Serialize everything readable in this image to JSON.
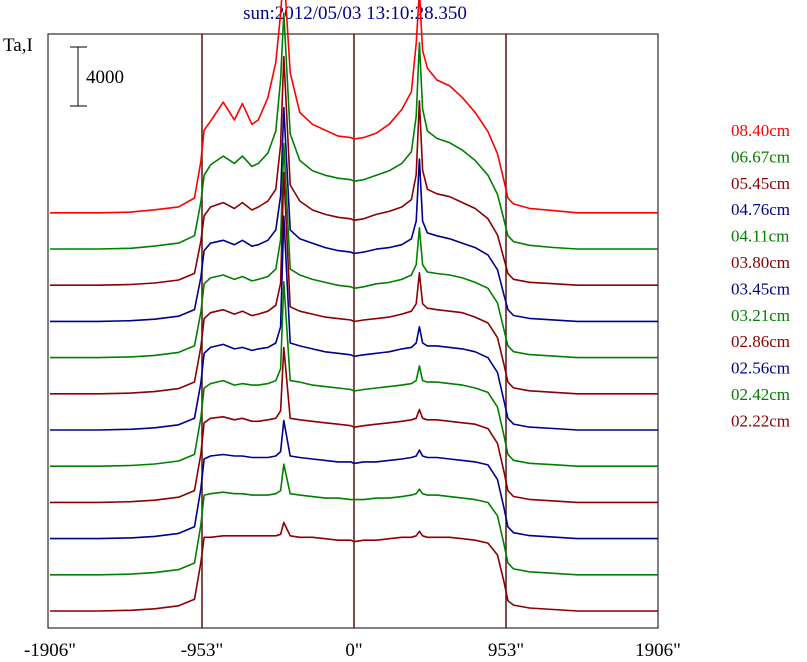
{
  "title": "sun:2012/05/03 13:10:28.350",
  "ylabel": "Ta,I",
  "scale_bar_label": "4000",
  "chart_data": {
    "type": "line",
    "title": "sun:2012/05/03 13:10:28.350",
    "ylabel": "Ta,I",
    "xlabel": "",
    "xlim": [
      -1906,
      1906
    ],
    "x_ticks": [
      -1906,
      -953,
      0,
      953,
      1906
    ],
    "x_tick_labels": [
      "-1906\"",
      "-953\"",
      "0\"",
      "953\"",
      "1906\""
    ],
    "vertical_lines_at": [
      -953,
      0,
      953
    ],
    "scale_bar_value": 4000,
    "x": [
      -1906,
      -1800,
      -1600,
      -1400,
      -1250,
      -1100,
      -1000,
      -960,
      -940,
      -900,
      -820,
      -750,
      -700,
      -640,
      -600,
      -540,
      -490,
      -460,
      -440,
      -400,
      -340,
      -260,
      -180,
      -100,
      -20,
      0,
      60,
      140,
      220,
      300,
      360,
      390,
      410,
      430,
      460,
      520,
      600,
      680,
      760,
      840,
      900,
      940,
      965,
      1000,
      1100,
      1250,
      1400,
      1600,
      1800,
      1906
    ],
    "series": [
      {
        "name": "08.40cm",
        "color": "#ff0000",
        "offset": 11,
        "values": [
          0,
          0,
          0,
          50,
          200,
          400,
          1000,
          3500,
          5600,
          6200,
          7500,
          6300,
          7400,
          6000,
          6300,
          7800,
          10200,
          13500,
          16500,
          9500,
          6800,
          6000,
          5600,
          5200,
          5100,
          5000,
          5100,
          5400,
          6000,
          7000,
          8200,
          11500,
          15000,
          11000,
          9800,
          9000,
          8600,
          7800,
          6800,
          5500,
          4000,
          2200,
          1000,
          600,
          300,
          150,
          0,
          0,
          0,
          0
        ]
      },
      {
        "name": "06.67cm",
        "color": "#008000",
        "offset": 10,
        "values": [
          0,
          0,
          0,
          50,
          200,
          400,
          900,
          3200,
          5000,
          5700,
          6300,
          5800,
          6300,
          5600,
          5800,
          6500,
          8000,
          11500,
          16000,
          7800,
          6000,
          5300,
          5000,
          4800,
          4700,
          4600,
          4700,
          5000,
          5300,
          5800,
          6600,
          9000,
          14000,
          9500,
          8000,
          7500,
          7200,
          6700,
          6000,
          5000,
          3700,
          2000,
          900,
          500,
          250,
          100,
          0,
          0,
          0,
          0
        ]
      },
      {
        "name": "05.45cm",
        "color": "#8b0000",
        "offset": 9,
        "values": [
          0,
          0,
          0,
          50,
          150,
          350,
          800,
          3000,
          4700,
          5300,
          5600,
          5200,
          5600,
          5100,
          5300,
          5700,
          6500,
          9500,
          15500,
          6800,
          5700,
          5100,
          4800,
          4600,
          4500,
          4400,
          4500,
          4800,
          5000,
          5300,
          5800,
          7500,
          12500,
          7800,
          6500,
          6200,
          6000,
          5600,
          5200,
          4500,
          3400,
          1800,
          800,
          400,
          200,
          100,
          0,
          0,
          0,
          0
        ]
      },
      {
        "name": "04.76cm",
        "color": "#00008b",
        "offset": 8,
        "values": [
          0,
          0,
          0,
          50,
          150,
          350,
          800,
          3000,
          4800,
          5300,
          5500,
          5200,
          5500,
          5100,
          5200,
          5500,
          6200,
          8500,
          14500,
          6200,
          5600,
          5300,
          5000,
          4800,
          4700,
          4600,
          4700,
          4900,
          5000,
          5200,
          5600,
          6800,
          11000,
          6800,
          6000,
          5800,
          5600,
          5300,
          5000,
          4500,
          3500,
          1800,
          800,
          400,
          200,
          100,
          0,
          0,
          0,
          0
        ]
      },
      {
        "name": "04.11cm",
        "color": "#008000",
        "offset": 7,
        "values": [
          0,
          0,
          0,
          50,
          150,
          350,
          800,
          3100,
          5000,
          5400,
          5600,
          5300,
          5500,
          5200,
          5300,
          5500,
          6000,
          8000,
          14500,
          6000,
          5600,
          5300,
          5100,
          4900,
          4800,
          4700,
          4800,
          5000,
          5100,
          5300,
          5600,
          6300,
          8800,
          6300,
          5800,
          5700,
          5600,
          5400,
          5100,
          4700,
          3700,
          1900,
          800,
          400,
          200,
          100,
          0,
          0,
          0,
          0
        ]
      },
      {
        "name": "03.80cm",
        "color": "#8b0000",
        "offset": 6,
        "values": [
          0,
          0,
          0,
          50,
          150,
          350,
          800,
          3200,
          5100,
          5500,
          5700,
          5400,
          5600,
          5300,
          5400,
          5600,
          6000,
          7500,
          15000,
          5900,
          5600,
          5400,
          5200,
          5100,
          5000,
          4900,
          5000,
          5100,
          5200,
          5400,
          5600,
          6100,
          8200,
          6100,
          5800,
          5700,
          5600,
          5500,
          5200,
          4800,
          3800,
          2000,
          800,
          400,
          200,
          100,
          0,
          0,
          0,
          0
        ]
      },
      {
        "name": "03.45cm",
        "color": "#00008b",
        "offset": 5,
        "values": [
          0,
          0,
          0,
          50,
          150,
          350,
          800,
          3200,
          5200,
          5600,
          5800,
          5500,
          5600,
          5400,
          5500,
          5600,
          5900,
          7000,
          14500,
          5900,
          5700,
          5500,
          5300,
          5200,
          5100,
          5000,
          5100,
          5200,
          5300,
          5500,
          5600,
          5900,
          7000,
          5900,
          5700,
          5700,
          5600,
          5500,
          5300,
          4900,
          3900,
          2000,
          800,
          400,
          200,
          100,
          0,
          0,
          0,
          0
        ]
      },
      {
        "name": "03.21cm",
        "color": "#008000",
        "offset": 4,
        "values": [
          0,
          0,
          0,
          50,
          150,
          350,
          800,
          3300,
          5300,
          5600,
          5800,
          5500,
          5600,
          5500,
          5500,
          5600,
          5800,
          6600,
          12500,
          5800,
          5700,
          5500,
          5400,
          5300,
          5200,
          5100,
          5200,
          5300,
          5400,
          5500,
          5600,
          5800,
          6800,
          5800,
          5700,
          5700,
          5600,
          5500,
          5300,
          5000,
          4000,
          2100,
          800,
          400,
          200,
          100,
          0,
          0,
          0,
          0
        ]
      },
      {
        "name": "02.86cm",
        "color": "#8b0000",
        "offset": 3,
        "values": [
          0,
          0,
          0,
          50,
          150,
          350,
          800,
          3300,
          5400,
          5700,
          5800,
          5600,
          5700,
          5500,
          5500,
          5600,
          5700,
          6200,
          10500,
          5700,
          5600,
          5500,
          5400,
          5300,
          5200,
          5100,
          5200,
          5300,
          5400,
          5500,
          5600,
          5700,
          6300,
          5700,
          5600,
          5600,
          5500,
          5400,
          5300,
          5000,
          4000,
          2100,
          800,
          400,
          200,
          100,
          0,
          0,
          0,
          0
        ]
      },
      {
        "name": "02.56cm",
        "color": "#00008b",
        "offset": 2,
        "values": [
          0,
          0,
          0,
          50,
          150,
          350,
          800,
          3400,
          5400,
          5600,
          5700,
          5600,
          5600,
          5500,
          5500,
          5500,
          5600,
          5900,
          8000,
          5600,
          5500,
          5400,
          5300,
          5200,
          5200,
          5100,
          5200,
          5200,
          5300,
          5400,
          5500,
          5600,
          6000,
          5600,
          5500,
          5500,
          5400,
          5300,
          5200,
          5000,
          4000,
          2100,
          800,
          400,
          200,
          100,
          0,
          0,
          0,
          0
        ]
      },
      {
        "name": "02.42cm",
        "color": "#008000",
        "offset": 1,
        "values": [
          0,
          0,
          0,
          50,
          150,
          350,
          800,
          3400,
          5400,
          5500,
          5600,
          5500,
          5500,
          5400,
          5400,
          5400,
          5500,
          5700,
          7500,
          5500,
          5400,
          5300,
          5200,
          5200,
          5100,
          5100,
          5100,
          5200,
          5200,
          5300,
          5400,
          5500,
          5800,
          5500,
          5400,
          5400,
          5300,
          5200,
          5100,
          4900,
          4000,
          2100,
          800,
          400,
          200,
          100,
          0,
          0,
          0,
          0
        ]
      },
      {
        "name": "02.22cm",
        "color": "#8b0000",
        "offset": 0,
        "values": [
          0,
          0,
          0,
          50,
          150,
          350,
          800,
          3300,
          5000,
          5000,
          5100,
          5100,
          5100,
          5100,
          5100,
          5100,
          5100,
          5200,
          6000,
          5100,
          5000,
          5000,
          4900,
          4800,
          4800,
          4700,
          4800,
          4800,
          4900,
          5000,
          5000,
          5100,
          5400,
          5100,
          5000,
          5000,
          5000,
          4900,
          4800,
          4600,
          3800,
          2000,
          700,
          400,
          200,
          100,
          0,
          0,
          0,
          0
        ]
      }
    ]
  }
}
